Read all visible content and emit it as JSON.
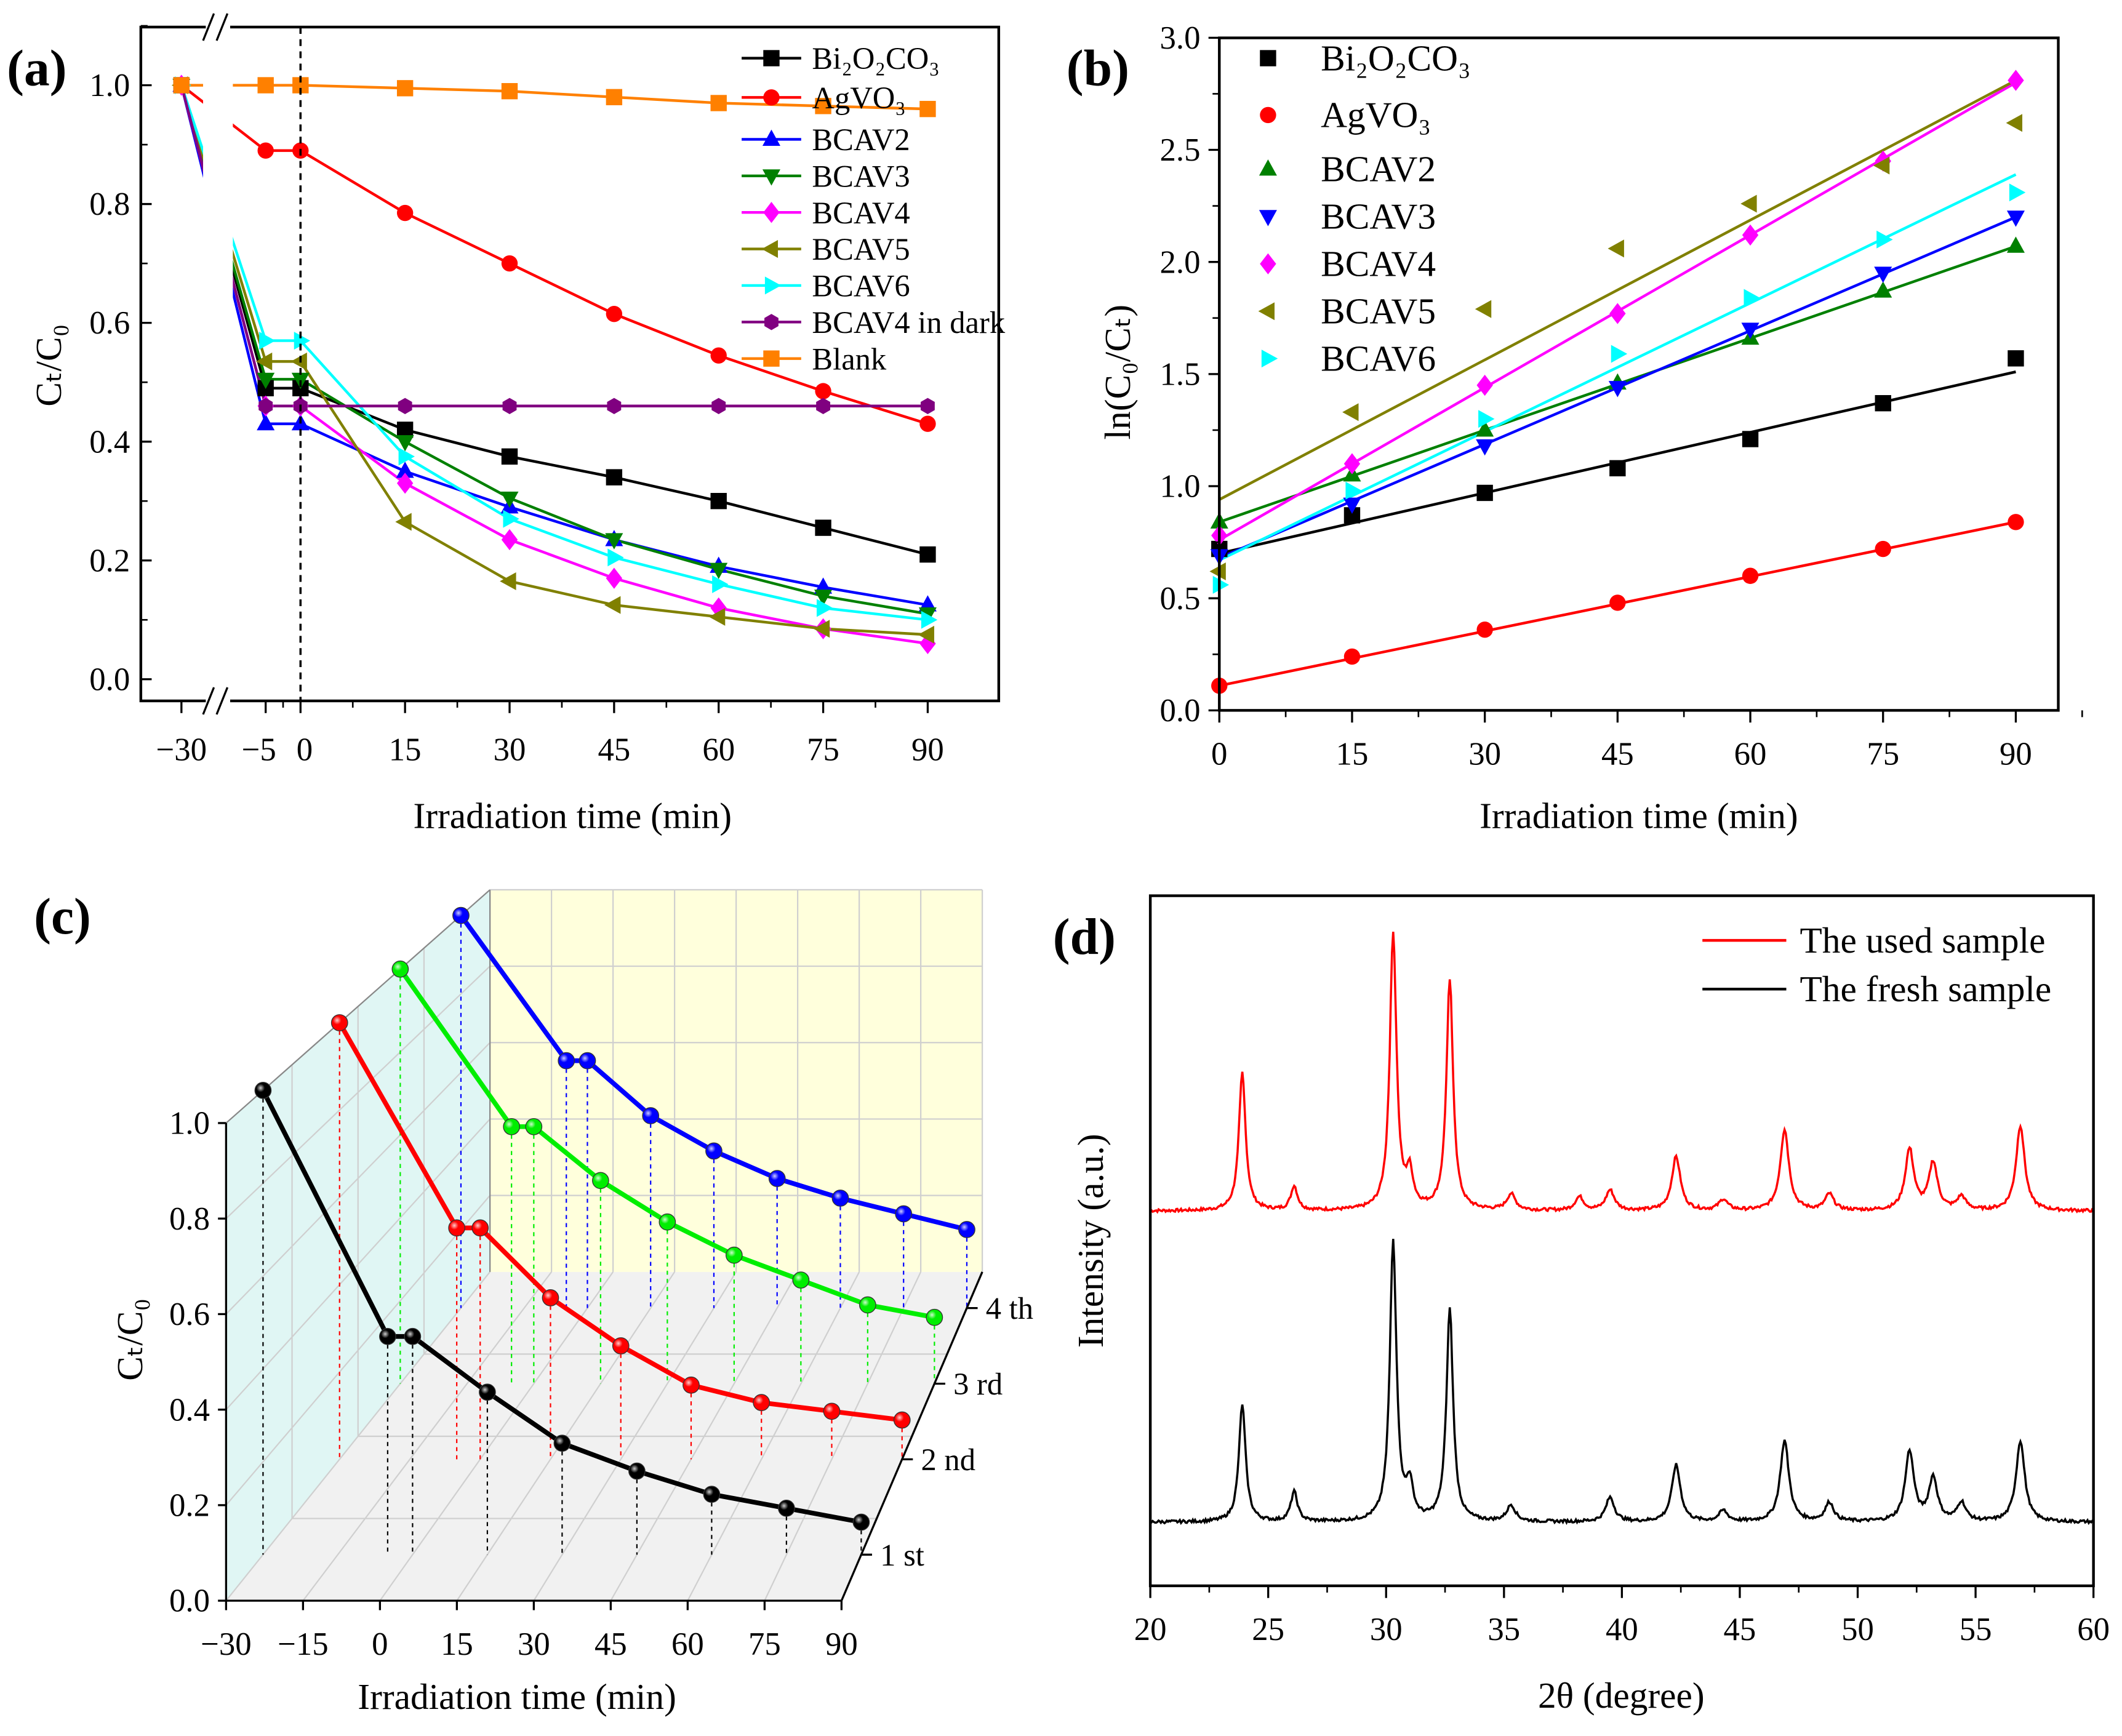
{
  "chart_data": [
    {
      "panel": "(a)",
      "type": "line",
      "xlabel": "Irradiation time (min)",
      "ylabel": "Cₜ/C₀",
      "x": [
        -30,
        -5,
        0,
        15,
        30,
        45,
        60,
        75,
        90
      ],
      "xticks": [
        "−30",
        "−5",
        "0",
        "15",
        "30",
        "45",
        "60",
        "75",
        "90"
      ],
      "ylim": [
        -0.1,
        1.1
      ],
      "yticks": [
        "0.0",
        "0.2",
        "0.4",
        "0.6",
        "0.8",
        "1.0"
      ],
      "axis_break": "between −30 and −5",
      "dark_light_divider_x": 0,
      "legend_position": "top-right",
      "series": [
        {
          "name": "Bi₂O₂CO₃",
          "color": "#000000",
          "marker": "square",
          "values": [
            1.0,
            0.49,
            0.49,
            0.42,
            0.375,
            0.34,
            0.3,
            0.255,
            0.21
          ]
        },
        {
          "name": "AgVO₃",
          "color": "#ff0000",
          "marker": "circle",
          "values": [
            1.0,
            0.89,
            0.89,
            0.785,
            0.7,
            0.615,
            0.545,
            0.485,
            0.43
          ]
        },
        {
          "name": "BCAV2",
          "color": "#0000ff",
          "marker": "triangle-up",
          "values": [
            1.0,
            0.43,
            0.43,
            0.35,
            0.29,
            0.235,
            0.19,
            0.155,
            0.125
          ]
        },
        {
          "name": "BCAV3",
          "color": "#008000",
          "marker": "triangle-down",
          "values": [
            1.0,
            0.505,
            0.505,
            0.4,
            0.305,
            0.235,
            0.185,
            0.14,
            0.11
          ]
        },
        {
          "name": "BCAV4",
          "color": "#ff00ff",
          "marker": "diamond",
          "values": [
            1.0,
            0.46,
            0.46,
            0.33,
            0.235,
            0.17,
            0.12,
            0.085,
            0.06
          ]
        },
        {
          "name": "BCAV5",
          "color": "#808000",
          "marker": "triangle-left",
          "values": [
            1.0,
            0.535,
            0.535,
            0.265,
            0.165,
            0.125,
            0.105,
            0.085,
            0.075
          ]
        },
        {
          "name": "BCAV6",
          "color": "#00ffff",
          "marker": "triangle-right",
          "values": [
            1.0,
            0.57,
            0.57,
            0.375,
            0.27,
            0.205,
            0.16,
            0.12,
            0.1
          ]
        },
        {
          "name": "BCAV4 in dark",
          "color": "#800080",
          "marker": "hexagon",
          "values": [
            1.0,
            0.46,
            0.46,
            0.46,
            0.46,
            0.46,
            0.46,
            0.46,
            0.46
          ]
        },
        {
          "name": "Blank",
          "color": "#ff8000",
          "marker": "square",
          "values": [
            1.0,
            1.0,
            1.0,
            0.995,
            0.99,
            0.98,
            0.97,
            0.965,
            0.96
          ]
        }
      ]
    },
    {
      "panel": "(b)",
      "type": "scatter",
      "xlabel": "Irradiation time (min)",
      "ylabel": "ln(C₀/Cₜ)",
      "x": [
        0,
        15,
        30,
        45,
        60,
        75,
        90
      ],
      "xticks": [
        "0",
        "15",
        "30",
        "45",
        "60",
        "75",
        "90"
      ],
      "xlim": [
        0,
        95
      ],
      "ylim": [
        0,
        3.0
      ],
      "yticks": [
        "0.0",
        "0.5",
        "1.0",
        "1.5",
        "2.0",
        "2.5",
        "3.0"
      ],
      "legend_position": "top-left",
      "series": [
        {
          "name": "Bi₂O₂CO₃",
          "color": "#000000",
          "marker": "square",
          "values": [
            0.72,
            0.87,
            0.97,
            1.08,
            1.21,
            1.37,
            1.57
          ],
          "fit": [
            0.7,
            1.51
          ]
        },
        {
          "name": "AgVO₃",
          "color": "#ff0000",
          "marker": "circle",
          "values": [
            0.11,
            0.24,
            0.36,
            0.48,
            0.6,
            0.72,
            0.84
          ],
          "fit": [
            0.11,
            0.84
          ]
        },
        {
          "name": "BCAV2",
          "color": "#008000",
          "marker": "triangle-up",
          "values": [
            0.84,
            1.05,
            1.25,
            1.46,
            1.66,
            1.87,
            2.07
          ],
          "fit": [
            0.84,
            2.07
          ]
        },
        {
          "name": "BCAV3",
          "color": "#0000ff",
          "marker": "triangle-down",
          "values": [
            0.69,
            0.92,
            1.18,
            1.44,
            1.7,
            1.95,
            2.2
          ],
          "fit": [
            0.68,
            2.2
          ]
        },
        {
          "name": "BCAV4",
          "color": "#ff00ff",
          "marker": "diamond",
          "values": [
            0.78,
            1.1,
            1.45,
            1.77,
            2.12,
            2.45,
            2.81
          ],
          "fit": [
            0.76,
            2.8
          ]
        },
        {
          "name": "BCAV5",
          "color": "#808000",
          "marker": "triangle-left",
          "values": [
            0.62,
            1.33,
            1.79,
            2.06,
            2.26,
            2.43,
            2.62
          ],
          "fit": [
            0.94,
            2.81
          ]
        },
        {
          "name": "BCAV6",
          "color": "#00ffff",
          "marker": "triangle-right",
          "values": [
            0.56,
            0.98,
            1.3,
            1.59,
            1.84,
            2.1,
            2.31
          ],
          "fit": [
            0.67,
            2.39
          ]
        }
      ]
    },
    {
      "panel": "(c)",
      "type": "line",
      "projection": "3d",
      "xlabel": "Irradiation time (min)",
      "ylabel": "Cₜ/C₀",
      "x": [
        -30,
        -5,
        0,
        15,
        30,
        45,
        60,
        75,
        90
      ],
      "xticks": [
        "−30",
        "−15",
        "0",
        "15",
        "30",
        "45",
        "60",
        "75",
        "90"
      ],
      "xtick_values": [
        -30,
        -15,
        0,
        15,
        30,
        45,
        60,
        75,
        90
      ],
      "ylim": [
        0,
        1.0
      ],
      "yticks": [
        "0.0",
        "0.2",
        "0.4",
        "0.6",
        "0.8",
        "1.0"
      ],
      "series": [
        {
          "name": "1 st",
          "color": "#000000",
          "depth": 0.14,
          "values": [
            1.0,
            0.47,
            0.47,
            0.35,
            0.24,
            0.18,
            0.13,
            0.1,
            0.07
          ]
        },
        {
          "name": "2 nd",
          "color": "#ff0000",
          "depth": 0.43,
          "values": [
            1.0,
            0.53,
            0.53,
            0.37,
            0.26,
            0.17,
            0.13,
            0.11,
            0.09
          ]
        },
        {
          "name": "3 rd",
          "color": "#00ee00",
          "depth": 0.66,
          "values": [
            1.0,
            0.62,
            0.62,
            0.49,
            0.39,
            0.31,
            0.25,
            0.19,
            0.16
          ]
        },
        {
          "name": "4 th",
          "color": "#0000ff",
          "depth": 0.89,
          "values": [
            1.0,
            0.63,
            0.63,
            0.49,
            0.4,
            0.33,
            0.28,
            0.24,
            0.2
          ]
        }
      ]
    },
    {
      "panel": "(d)",
      "type": "line",
      "xlabel": "2θ (degree)",
      "ylabel": "Intensity (a.u.)",
      "xlim": [
        20,
        60
      ],
      "xticks": [
        "20",
        "25",
        "30",
        "35",
        "40",
        "45",
        "50",
        "55",
        "60"
      ],
      "legend_position": "top-right",
      "series": [
        {
          "name": "The used sample",
          "color": "#ff0000",
          "offset": 230,
          "peaks": [
            [
              23.9,
              102
            ],
            [
              26.1,
              18
            ],
            [
              30.3,
              205
            ],
            [
              31.0,
              25
            ],
            [
              32.7,
              170
            ],
            [
              35.3,
              12
            ],
            [
              38.2,
              10
            ],
            [
              39.5,
              15
            ],
            [
              42.3,
              40
            ],
            [
              44.3,
              8
            ],
            [
              46.9,
              60
            ],
            [
              48.8,
              12
            ],
            [
              52.2,
              45
            ],
            [
              53.2,
              35
            ],
            [
              54.4,
              10
            ],
            [
              56.9,
              63
            ]
          ]
        },
        {
          "name": "The fresh sample",
          "color": "#000000",
          "offset": 0,
          "peaks": [
            [
              23.9,
              87
            ],
            [
              26.1,
              22
            ],
            [
              30.3,
              207
            ],
            [
              31.0,
              25
            ],
            [
              32.7,
              157
            ],
            [
              35.3,
              12
            ],
            [
              39.5,
              18
            ],
            [
              42.3,
              42
            ],
            [
              44.3,
              8
            ],
            [
              46.9,
              60
            ],
            [
              48.8,
              14
            ],
            [
              52.2,
              52
            ],
            [
              53.2,
              32
            ],
            [
              54.4,
              14
            ],
            [
              56.9,
              60
            ]
          ]
        }
      ]
    }
  ],
  "panel_labels": [
    "(a)",
    "(b)",
    "(c)",
    "(d)"
  ]
}
